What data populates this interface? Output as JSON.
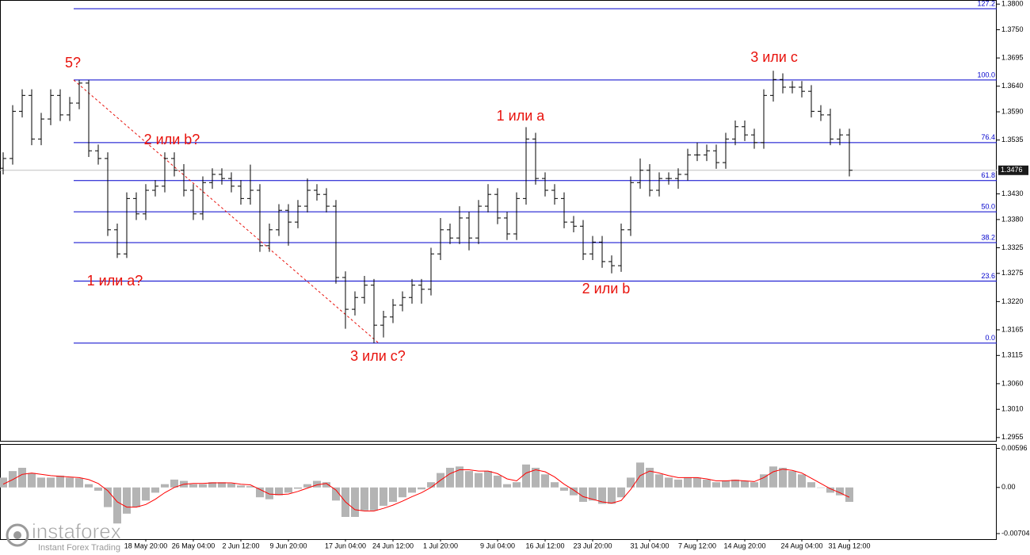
{
  "chart_data": {
    "type": "ohlc",
    "categories": [
      null,
      null,
      null,
      null,
      null,
      null,
      null,
      null,
      null,
      null,
      null,
      null,
      null,
      null,
      null,
      "18 May 20:00",
      null,
      null,
      null,
      null,
      "26 May 04:00",
      null,
      null,
      null,
      null,
      "2 Jun 12:00",
      null,
      null,
      null,
      null,
      "9 Jun 20:00",
      null,
      null,
      null,
      null,
      null,
      "17 Jun 04:00",
      null,
      null,
      null,
      null,
      "24 Jun 12:00",
      null,
      null,
      null,
      null,
      "1 Jul 20:00",
      null,
      null,
      null,
      null,
      null,
      "9 Jul 04:00",
      null,
      null,
      null,
      null,
      "16 Jul 12:00",
      null,
      null,
      null,
      null,
      "23 Jul 20:00",
      null,
      null,
      null,
      null,
      null,
      "31 Jul 04:00",
      null,
      null,
      null,
      null,
      "7 Aug 12:00",
      null,
      null,
      null,
      null,
      "14 Aug 20:00",
      null,
      null,
      null,
      null,
      null,
      "24 Aug 04:00",
      null,
      null,
      null,
      null,
      "31 Aug 12:00"
    ],
    "open": [
      1.348,
      1.3499,
      1.3591,
      1.3622,
      1.3537,
      1.3576,
      1.3622,
      1.3584,
      1.3607,
      1.3646,
      1.3514,
      1.3499,
      1.336,
      1.3313,
      1.3421,
      1.3391,
      1.3437,
      1.3445,
      1.3499,
      1.3476,
      1.3437,
      1.3391,
      1.3452,
      1.3468,
      1.346,
      1.3445,
      1.3421,
      1.3437,
      1.3329,
      1.336,
      1.3398,
      1.3375,
      1.3406,
      1.3437,
      1.3429,
      1.3406,
      1.3267,
      1.3205,
      1.3228,
      1.3252,
      1.3174,
      1.319,
      1.3213,
      1.3228,
      1.3252,
      1.3244,
      1.3313,
      1.336,
      1.3344,
      1.3383,
      1.3344,
      1.3406,
      1.3429,
      1.3383,
      1.3352,
      1.3421,
      1.3537,
      1.346,
      1.3437,
      1.3421,
      1.3375,
      1.3367,
      1.3313,
      1.3336,
      1.3298,
      1.329,
      1.336,
      1.3452,
      1.3476,
      1.3437,
      1.346,
      1.346,
      1.3468,
      1.3506,
      1.3506,
      1.3514,
      1.3491,
      1.3537,
      1.3561,
      1.3545,
      1.353,
      1.3622,
      1.3653,
      1.3638,
      1.3638,
      1.363,
      1.3591,
      1.3584,
      1.3537,
      1.3545
    ],
    "high": [
      1.3511,
      1.3603,
      1.3634,
      1.3634,
      1.3588,
      1.3634,
      1.3634,
      1.3619,
      1.3652,
      1.3652,
      1.3526,
      1.3511,
      1.3372,
      1.3433,
      1.3433,
      1.3449,
      1.3457,
      1.3511,
      1.3511,
      1.3488,
      1.3449,
      1.3464,
      1.348,
      1.348,
      1.3472,
      1.3457,
      1.3487,
      1.3449,
      1.3372,
      1.341,
      1.341,
      1.3418,
      1.346,
      1.3449,
      1.3441,
      1.3418,
      1.3279,
      1.324,
      1.327,
      1.3264,
      1.3202,
      1.3225,
      1.324,
      1.3264,
      1.3264,
      1.3325,
      1.3383,
      1.3372,
      1.3406,
      1.3395,
      1.3418,
      1.3449,
      1.3441,
      1.3395,
      1.3433,
      1.356,
      1.3549,
      1.3472,
      1.3449,
      1.3433,
      1.3387,
      1.3379,
      1.3348,
      1.3348,
      1.331,
      1.3372,
      1.3464,
      1.3499,
      1.3488,
      1.3472,
      1.3472,
      1.348,
      1.3518,
      1.353,
      1.3526,
      1.3526,
      1.3549,
      1.3573,
      1.3573,
      1.3557,
      1.3634,
      1.367,
      1.3665,
      1.365,
      1.365,
      1.3642,
      1.3603,
      1.3596,
      1.3557,
      1.3557
    ],
    "low": [
      1.3468,
      1.3487,
      1.3579,
      1.3525,
      1.3525,
      1.3564,
      1.3572,
      1.3572,
      1.3595,
      1.3502,
      1.3487,
      1.3348,
      1.3305,
      1.3305,
      1.3379,
      1.3379,
      1.3425,
      1.3433,
      1.3464,
      1.3425,
      1.3379,
      1.3379,
      1.344,
      1.3448,
      1.3433,
      1.3409,
      1.3409,
      1.3317,
      1.3317,
      1.3348,
      1.3329,
      1.3363,
      1.3394,
      1.3417,
      1.3394,
      1.3255,
      1.3167,
      1.3193,
      1.3216,
      1.3139,
      1.315,
      1.3178,
      1.3201,
      1.3216,
      1.3216,
      1.3232,
      1.3301,
      1.3332,
      1.3332,
      1.332,
      1.3332,
      1.3394,
      1.3371,
      1.334,
      1.334,
      1.3409,
      1.3448,
      1.3425,
      1.3409,
      1.3363,
      1.3355,
      1.3301,
      1.3301,
      1.3286,
      1.3275,
      1.3278,
      1.3348,
      1.344,
      1.3425,
      1.3425,
      1.3448,
      1.344,
      1.3456,
      1.3494,
      1.3494,
      1.3479,
      1.3479,
      1.3525,
      1.3533,
      1.3518,
      1.3518,
      1.361,
      1.3626,
      1.3626,
      1.3618,
      1.3579,
      1.3572,
      1.3525,
      1.3525,
      1.3464
    ],
    "close": [
      1.3499,
      1.3591,
      1.3622,
      1.3537,
      1.3576,
      1.3622,
      1.3584,
      1.3607,
      1.3646,
      1.3514,
      1.3499,
      1.336,
      1.3313,
      1.3421,
      1.3391,
      1.3437,
      1.3445,
      1.3499,
      1.3476,
      1.3437,
      1.3391,
      1.3452,
      1.3468,
      1.346,
      1.3445,
      1.3421,
      1.3437,
      1.3329,
      1.336,
      1.3398,
      1.3375,
      1.3406,
      1.3437,
      1.3429,
      1.3406,
      1.3267,
      1.3205,
      1.3228,
      1.3252,
      1.3174,
      1.319,
      1.3213,
      1.3228,
      1.3252,
      1.3244,
      1.3313,
      1.336,
      1.3344,
      1.3383,
      1.3344,
      1.3406,
      1.3429,
      1.3383,
      1.3352,
      1.3421,
      1.3537,
      1.346,
      1.3437,
      1.3421,
      1.3375,
      1.3367,
      1.3313,
      1.3336,
      1.3298,
      1.329,
      1.336,
      1.3452,
      1.3476,
      1.3437,
      1.346,
      1.346,
      1.3468,
      1.3506,
      1.3506,
      1.3514,
      1.3491,
      1.3537,
      1.3561,
      1.3545,
      1.353,
      1.3622,
      1.3653,
      1.3638,
      1.3638,
      1.363,
      1.3591,
      1.3584,
      1.3537,
      1.3545,
      1.3476
    ],
    "color": "#000000",
    "ylim": [
      1.2947,
      1.3808
    ],
    "yticks": [
      {
        "value": 1.38,
        "label": "1.3800"
      },
      {
        "value": 1.375,
        "label": "1.3750"
      },
      1.3695,
      {
        "value": 1.364,
        "label": "1.3640"
      },
      {
        "value": 1.359,
        "label": "1.3590"
      },
      1.3535,
      {
        "value": 1.343,
        "label": "1.3430"
      },
      {
        "value": 1.338,
        "label": "1.3380"
      },
      1.3325,
      1.3275,
      {
        "value": 1.322,
        "label": "1.3220"
      },
      1.3165,
      1.3115,
      {
        "value": 1.306,
        "label": "1.3060"
      },
      {
        "value": 1.301,
        "label": "1.3010"
      },
      1.2955
    ],
    "current_price": 1.3476,
    "fib_color": "#0000cc",
    "fib_levels": [
      {
        "level": "127.2",
        "price": 1.3791
      },
      {
        "level": "100.0",
        "price": 1.3652
      },
      {
        "level": "76.4",
        "price": 1.353
      },
      {
        "level": "61.8",
        "price": 1.3456
      },
      {
        "level": "50.0",
        "price": 1.3395
      },
      {
        "level": "38.2",
        "price": 1.3335
      },
      {
        "level": "23.6",
        "price": 1.326
      },
      {
        "level": "0.0",
        "price": 1.3139
      }
    ],
    "wave_color": "#e8120c",
    "wave_labels": [
      "5?",
      "2 или b?",
      "1 или a?",
      "3 или c?",
      "1 или a",
      "2 или b",
      "3 или c"
    ],
    "macd": {
      "type": "macd",
      "histogram_color": "#b4b4b4",
      "signal_color": "#ff0000",
      "ylim": [
        -0.00789,
        0.00663
      ],
      "yticks": [
        0.00596,
        {
          "value": 0,
          "label": "0.00"
        },
        -0.00704
      ],
      "histogram": [
        0.0015,
        0.0025,
        0.003,
        0.0022,
        0.0015,
        0.0015,
        0.0018,
        0.0015,
        0.0014,
        0.0005,
        -0.0005,
        -0.003,
        -0.0055,
        -0.004,
        -0.003,
        -0.002,
        -0.0008,
        0.0005,
        0.0012,
        0.001,
        0.0005,
        0.0005,
        0.0008,
        0.0008,
        0.0006,
        0.0003,
        0.0002,
        -0.0015,
        -0.0018,
        -0.0012,
        -0.0008,
        -0.0002,
        0.0005,
        0.001,
        0.0008,
        -0.002,
        -0.0045,
        -0.0045,
        -0.0035,
        -0.0035,
        -0.0028,
        -0.0022,
        -0.0015,
        -0.0008,
        -0.0003,
        0.0008,
        0.0022,
        0.003,
        0.0032,
        0.0025,
        0.0022,
        0.0025,
        0.0018,
        0.0005,
        0.0008,
        0.0035,
        0.003,
        0.002,
        0.0008,
        -0.0005,
        -0.0012,
        -0.0022,
        -0.002,
        -0.0025,
        -0.0025,
        -0.0015,
        0.0015,
        0.0038,
        0.003,
        0.002,
        0.0015,
        0.0012,
        0.0015,
        0.0015,
        0.0012,
        0.0008,
        0.001,
        0.0012,
        0.001,
        0.0008,
        0.002,
        0.0032,
        0.003,
        0.0025,
        0.002,
        0.0008,
        0,
        -0.0008,
        -0.0012,
        -0.0022
      ],
      "signal": [
        0.0005,
        0.0012,
        0.002,
        0.0022,
        0.002,
        0.0018,
        0.0017,
        0.0016,
        0.0015,
        0.0012,
        0.0006,
        -0.0005,
        -0.0022,
        -0.003,
        -0.003,
        -0.0026,
        -0.0018,
        -0.0008,
        0,
        0.0005,
        0.0006,
        0.0006,
        0.0007,
        0.0007,
        0.0007,
        0.0005,
        0.0004,
        -0.0003,
        -0.001,
        -0.0011,
        -0.001,
        -0.0006,
        -0.0001,
        0.0004,
        0.0006,
        -0.0004,
        -0.0022,
        -0.0034,
        -0.0036,
        -0.0036,
        -0.0032,
        -0.0027,
        -0.0021,
        -0.0014,
        -0.0008,
        0,
        0.0011,
        0.0021,
        0.0027,
        0.0027,
        0.0025,
        0.0025,
        0.0021,
        0.0013,
        0.001,
        0.0022,
        0.0027,
        0.0024,
        0.0016,
        0.0005,
        -0.0004,
        -0.0014,
        -0.0018,
        -0.0022,
        -0.0024,
        -0.002,
        -0.0003,
        0.0018,
        0.0025,
        0.0022,
        0.0018,
        0.0015,
        0.0015,
        0.0015,
        0.0013,
        0.001,
        0.001,
        0.0011,
        0.001,
        0.0009,
        0.0015,
        0.0024,
        0.0028,
        0.0026,
        0.0022,
        0.0014,
        0.0006,
        -0.0002,
        -0.0008,
        -0.0015
      ]
    }
  },
  "watermark": {
    "name": "instaforex",
    "tagline": "Instant Forex Trading"
  }
}
